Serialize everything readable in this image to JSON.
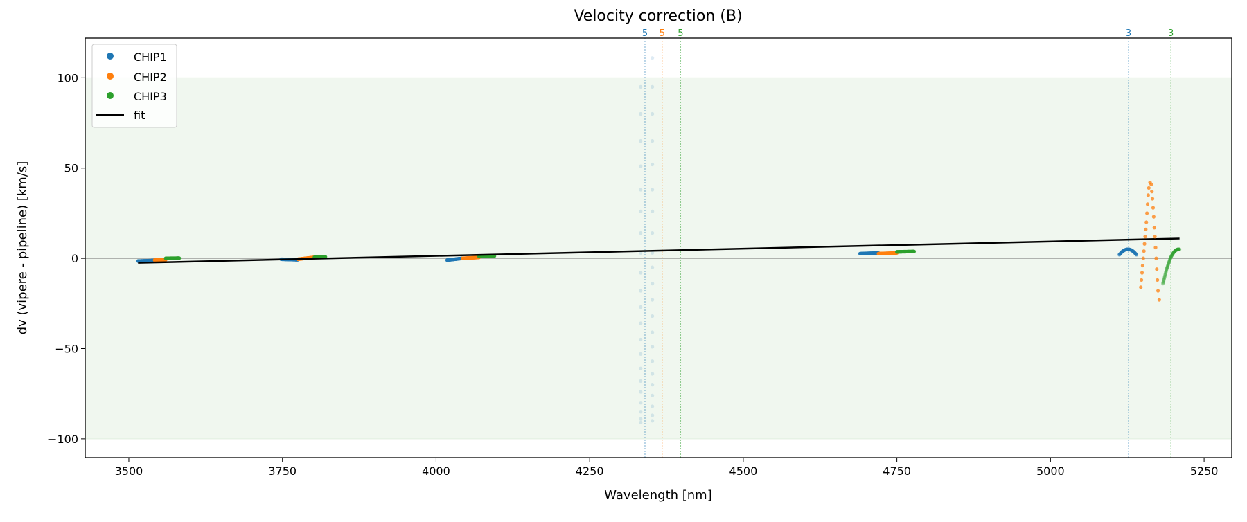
{
  "chart_data": {
    "type": "scatter",
    "title": "Velocity correction (B)",
    "xlabel": "Wavelength [nm]",
    "ylabel": "dv (vipere - pipeline) [km/s]",
    "xlim": [
      3429,
      5295
    ],
    "ylim": [
      -110.4,
      122
    ],
    "xticks": [
      3500,
      3750,
      4000,
      4250,
      4500,
      4750,
      5000,
      5250
    ],
    "yticks": [
      -100,
      -50,
      0,
      50,
      100
    ],
    "band": [
      -100,
      100
    ],
    "grid": false,
    "legend": {
      "placement": "upper-left",
      "entries": [
        "CHIP1",
        "CHIP2",
        "CHIP3",
        "fit"
      ]
    },
    "colors": {
      "CHIP1": "#1f77b4",
      "CHIP2": "#ff7f0e",
      "CHIP3": "#2ca02c",
      "fit": "#000000",
      "band": "#f0f7ef"
    },
    "fit": {
      "x": [
        3515,
        5210
      ],
      "y": [
        -2.5,
        11
      ]
    },
    "series": [
      {
        "name": "CHIP1",
        "segments": [
          [
            3515,
            3542,
            -1.5,
            -1.2
          ],
          [
            3748,
            3775,
            -0.5,
            -0.8
          ],
          [
            4018,
            4043,
            -1,
            0
          ],
          [
            4690,
            4720,
            2.6,
            3
          ]
        ]
      },
      {
        "name": "CHIP2",
        "segments": [
          [
            3542,
            3560,
            -1,
            -0.8
          ],
          [
            3775,
            3802,
            -0.5,
            0.6
          ],
          [
            4043,
            4070,
            0,
            0.5
          ],
          [
            4720,
            4750,
            2.6,
            3
          ]
        ]
      },
      {
        "name": "CHIP3",
        "segments": [
          [
            3560,
            3582,
            0,
            0.1
          ],
          [
            3802,
            3820,
            0.6,
            0.8
          ],
          [
            4070,
            4095,
            1,
            1.3
          ],
          [
            4750,
            4778,
            3.6,
            3.8
          ]
        ]
      }
    ],
    "faint_points": {
      "series": "CHIP1",
      "left_x": 4333,
      "right_x": 4352,
      "left_y": [
        95,
        80,
        65,
        51,
        38,
        26,
        14,
        3,
        -8,
        -18,
        -27,
        -36,
        -45,
        -53,
        -61,
        -68,
        -74,
        -80,
        -85,
        -89,
        -91
      ],
      "right_y": [
        111,
        95,
        80,
        65,
        52,
        38,
        26,
        14,
        3,
        -5,
        -14,
        -23,
        -32,
        -41,
        -49,
        -57,
        -64,
        -70,
        -76,
        -82,
        -87,
        -90
      ]
    },
    "chip1_arc": {
      "x": [
        5112,
        5116,
        5120,
        5124,
        5128,
        5132,
        5136,
        5140
      ],
      "y": [
        2,
        3.5,
        4.5,
        5,
        5,
        4.5,
        3.5,
        2
      ]
    },
    "chip2_loop": {
      "x": [
        5147,
        5148,
        5149,
        5150,
        5151,
        5152,
        5153,
        5154,
        5155,
        5156,
        5157,
        5158,
        5159,
        5160,
        5162,
        5164,
        5165,
        5166,
        5167,
        5168,
        5169,
        5170,
        5171,
        5172,
        5173,
        5174,
        5175,
        5177
      ],
      "y": [
        -16,
        -12,
        -8,
        -4,
        0,
        4,
        8,
        12,
        16,
        20,
        25,
        30,
        35,
        39,
        42,
        41,
        37,
        33,
        28,
        23,
        17,
        12,
        6,
        0,
        -6,
        -12,
        -18,
        -23
      ]
    },
    "chip3_curve": {
      "x": [
        5183,
        5186,
        5189,
        5192,
        5195,
        5198,
        5201,
        5204,
        5207,
        5210
      ],
      "y": [
        -14,
        -10,
        -6,
        -3,
        0,
        2,
        3.5,
        4.5,
        5,
        5
      ]
    },
    "markers": [
      {
        "x": 4340,
        "label": "5",
        "color": "#1f77b4"
      },
      {
        "x": 4368,
        "label": "5",
        "color": "#ff7f0e"
      },
      {
        "x": 4398,
        "label": "5",
        "color": "#2ca02c"
      },
      {
        "x": 5127,
        "label": "3",
        "color": "#1f77b4"
      },
      {
        "x": 5196,
        "label": "3",
        "color": "#2ca02c"
      }
    ]
  }
}
